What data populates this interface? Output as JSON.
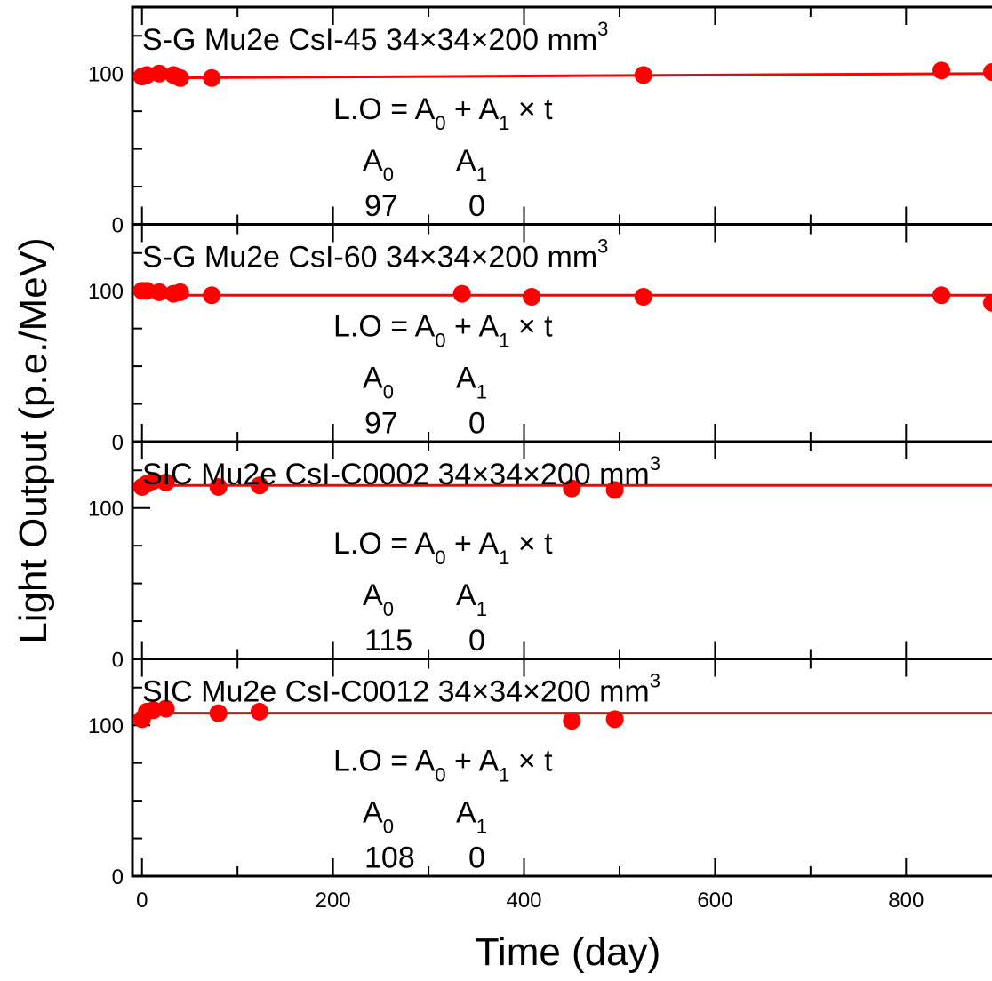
{
  "colors": {
    "data": "#ff0000",
    "fit": "#ff0000",
    "axis": "#000000"
  },
  "axes": {
    "xlabel": "Time (day)",
    "ylabel": "Light Output (p.e./MeV)",
    "xlim": [
      -10,
      890
    ],
    "x_ticks": [
      "0",
      "200",
      "400",
      "600",
      "800"
    ],
    "x_tick_values": [
      0,
      200,
      400,
      600,
      800
    ],
    "y_ticks": [
      "0",
      "100"
    ],
    "y_tick_values": [
      0,
      100
    ],
    "ylim_per_panel": [
      0,
      144
    ]
  },
  "chart_data": [
    {
      "type": "scatter",
      "title": "S-G Mu2e CsI-45   34×34×200 mm",
      "title_sup": "3",
      "formula": {
        "lhs": "L.O = A",
        "sub0": "0",
        "mid": " + A",
        "sub1": "1",
        "rhs": " × t"
      },
      "params": {
        "A": "A",
        "A0_sub": "0",
        "A1_sub": "1",
        "A0": "97",
        "A1": "0"
      },
      "fit": {
        "x": [
          0,
          890
        ],
        "y": [
          97,
          100
        ]
      },
      "points": {
        "x": [
          0,
          5,
          18,
          33,
          40,
          73,
          525,
          837,
          890
        ],
        "y": [
          98,
          99,
          100,
          99,
          97,
          97,
          99,
          102,
          101
        ]
      }
    },
    {
      "type": "scatter",
      "title": "S-G Mu2e CsI-60   34×34×200 mm",
      "title_sup": "3",
      "formula": {
        "lhs": "L.O = A",
        "sub0": "0",
        "mid": " + A",
        "sub1": "1",
        "rhs": " × t"
      },
      "params": {
        "A": "A",
        "A0_sub": "0",
        "A1_sub": "1",
        "A0": "97",
        "A1": "0"
      },
      "fit": {
        "x": [
          0,
          890
        ],
        "y": [
          97,
          97
        ]
      },
      "points": {
        "x": [
          0,
          5,
          18,
          33,
          40,
          73,
          335,
          408,
          525,
          837,
          890
        ],
        "y": [
          100,
          100,
          99,
          98,
          99,
          97,
          98,
          96,
          96,
          97,
          92
        ]
      }
    },
    {
      "type": "scatter",
      "title": "SIC Mu2e CsI-C0002   34×34×200 mm",
      "title_sup": "3",
      "formula": {
        "lhs": "L.O = A",
        "sub0": "0",
        "mid": " + A",
        "sub1": "1",
        "rhs": " × t"
      },
      "params": {
        "A": "A",
        "A0_sub": "0",
        "A1_sub": "1",
        "A0": "115",
        "A1": "0"
      },
      "fit": {
        "x": [
          0,
          890
        ],
        "y": [
          115,
          115
        ]
      },
      "points": {
        "x": [
          0,
          5,
          12,
          25,
          80,
          123,
          450,
          495
        ],
        "y": [
          114,
          116,
          118,
          117,
          114,
          115,
          113,
          112
        ]
      }
    },
    {
      "type": "scatter",
      "title": "SIC Mu2e CsI-C0012   34×34×200 mm",
      "title_sup": "3",
      "formula": {
        "lhs": "L.O = A",
        "sub0": "0",
        "mid": " + A",
        "sub1": "1",
        "rhs": " × t"
      },
      "params": {
        "A": "A",
        "A0_sub": "0",
        "A1_sub": "1",
        "A0": "108",
        "A1": "0"
      },
      "fit": {
        "x": [
          0,
          890
        ],
        "y": [
          108,
          108
        ]
      },
      "points": {
        "x": [
          0,
          5,
          12,
          25,
          80,
          123,
          450,
          495
        ],
        "y": [
          104,
          109,
          110,
          111,
          108,
          109,
          103,
          104
        ]
      }
    }
  ]
}
